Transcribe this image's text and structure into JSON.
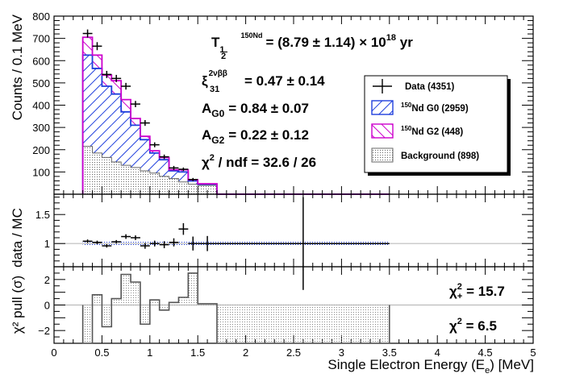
{
  "chart_data": {
    "type": "histogram",
    "x_axis": {
      "label": "Single Electron Energy (E",
      "label_sub": "e",
      "label_end": ") [MeV]",
      "range": [
        0,
        5
      ],
      "ticks": [
        0,
        0.5,
        1,
        1.5,
        2,
        2.5,
        3,
        3.5,
        4,
        4.5,
        5
      ],
      "tick_labels": [
        "0",
        "0.5",
        "1",
        "1.5",
        "2",
        "2.5",
        "3",
        "3.5",
        "4",
        "4.5",
        "5"
      ]
    },
    "bin_edges": [
      0.3,
      0.4,
      0.5,
      0.6,
      0.7,
      0.8,
      0.9,
      1.0,
      1.1,
      1.2,
      1.3,
      1.4,
      1.5,
      1.7,
      3.5
    ],
    "top_panel": {
      "ylabel": "Counts / 0.1 MeV",
      "ylim": [
        0,
        800
      ],
      "yticks": [
        100,
        200,
        300,
        400,
        500,
        600,
        700,
        800
      ],
      "stack": {
        "background": [
          215,
          185,
          165,
          145,
          130,
          120,
          105,
          95,
          80,
          70,
          55,
          45,
          40,
          0
        ],
        "nd_g0": [
          410,
          380,
          320,
          305,
          240,
          190,
          140,
          90,
          75,
          35,
          45,
          15,
          5,
          0
        ],
        "nd_g2": [
          80,
          60,
          50,
          60,
          55,
          30,
          15,
          10,
          10,
          5,
          10,
          5,
          2,
          0
        ]
      },
      "data_points": [
        {
          "x": 0.35,
          "y": 722,
          "ex": 0.05,
          "ey": 18
        },
        {
          "x": 0.45,
          "y": 665,
          "ex": 0.05,
          "ey": 18
        },
        {
          "x": 0.55,
          "y": 538,
          "ex": 0.05,
          "ey": 16
        },
        {
          "x": 0.65,
          "y": 520,
          "ex": 0.05,
          "ey": 16
        },
        {
          "x": 0.75,
          "y": 485,
          "ex": 0.05,
          "ey": 15
        },
        {
          "x": 0.85,
          "y": 405,
          "ex": 0.05,
          "ey": 14
        },
        {
          "x": 0.95,
          "y": 320,
          "ex": 0.05,
          "ey": 13
        },
        {
          "x": 1.05,
          "y": 222,
          "ex": 0.05,
          "ey": 11
        },
        {
          "x": 1.15,
          "y": 168,
          "ex": 0.05,
          "ey": 10
        },
        {
          "x": 1.25,
          "y": 118,
          "ex": 0.05,
          "ey": 9
        },
        {
          "x": 1.35,
          "y": 112,
          "ex": 0.05,
          "ey": 8
        },
        {
          "x": 1.45,
          "y": 66,
          "ex": 0.05,
          "ey": 7
        }
      ],
      "annotations": {
        "half_life_T": "T",
        "half_life_sub_num": "1",
        "half_life_sub_den": "2",
        "half_life_sup": "150",
        "half_life_sup_el": "Nd",
        "half_life_value": "= (8.79 ± 1.14) × 10",
        "half_life_exp": "18",
        "half_life_unit": " yr",
        "xi_symbol": "ξ",
        "xi_sup": "2νββ",
        "xi_sub": "31",
        "xi_value": "= 0.47 ± 0.14",
        "ag0": "A",
        "ag0_sub": "G0",
        "ag0_value": "= 0.84 ± 0.07",
        "ag2": "A",
        "ag2_sub": "G2",
        "ag2_value": "= 0.22 ± 0.12",
        "chi2": "χ",
        "chi2_sup": "2",
        "chi2_value": " / ndf = 32.6 / 26"
      },
      "legend": {
        "placement": "right",
        "entries": [
          {
            "label": "Data (4351)"
          },
          {
            "sup": "150",
            "label": "Nd G0 (2959)"
          },
          {
            "sup": "150",
            "label": "Nd G2 (448)"
          },
          {
            "label": "Background (898)"
          }
        ]
      }
    },
    "ratio_panel": {
      "ylabel": "data / MC",
      "ylim": [
        0.6,
        1.85
      ],
      "yticks": [
        1,
        1.5
      ],
      "ytick_labels": [
        "1",
        "1.5"
      ],
      "reference": 1,
      "points": [
        {
          "x": 0.35,
          "y": 1.04,
          "ey": 0.03
        },
        {
          "x": 0.45,
          "y": 1.02,
          "ey": 0.03
        },
        {
          "x": 0.55,
          "y": 0.96,
          "ey": 0.03
        },
        {
          "x": 0.65,
          "y": 1.03,
          "ey": 0.03
        },
        {
          "x": 0.75,
          "y": 1.12,
          "ey": 0.04
        },
        {
          "x": 0.85,
          "y": 1.1,
          "ey": 0.04
        },
        {
          "x": 0.95,
          "y": 0.96,
          "ey": 0.05
        },
        {
          "x": 1.05,
          "y": 1.0,
          "ey": 0.05
        },
        {
          "x": 1.15,
          "y": 0.98,
          "ey": 0.06
        },
        {
          "x": 1.25,
          "y": 1.02,
          "ey": 0.07
        },
        {
          "x": 1.35,
          "y": 1.25,
          "ey": 0.1
        },
        {
          "x": 1.45,
          "y": 1.0,
          "ey": 0.12
        },
        {
          "x": 1.6,
          "y": 1.0,
          "ey": 0.13,
          "ex": 0.1
        },
        {
          "x": 2.6,
          "y": 1.0,
          "ey": 0.8,
          "ex": 0.9
        }
      ]
    },
    "pull_panel": {
      "ylabel": "χ² pull (σ)",
      "ylim": [
        -3,
        3
      ],
      "yticks": [
        -2,
        0,
        2
      ],
      "ytick_labels": [
        "−2",
        "0",
        "2"
      ],
      "values": [
        -3.0,
        0.8,
        -1.7,
        0.5,
        2.4,
        1.8,
        -1.5,
        0.4,
        -0.4,
        0.2,
        0.6,
        2.5,
        0.1,
        -3.0
      ],
      "chi2_plus_label": "χ",
      "chi2_plus_sup": "2",
      "chi2_plus_sub": "+",
      "chi2_plus_value": " = 15.7",
      "chi2_minus_label": "χ",
      "chi2_minus_sup": "2",
      "chi2_minus_value": " = 6.5"
    },
    "colors": {
      "nd_g0": "#1f3fdd",
      "nd_g2": "#cc00cc",
      "background": "#666666",
      "reference_line": "#bbbbbb"
    }
  }
}
